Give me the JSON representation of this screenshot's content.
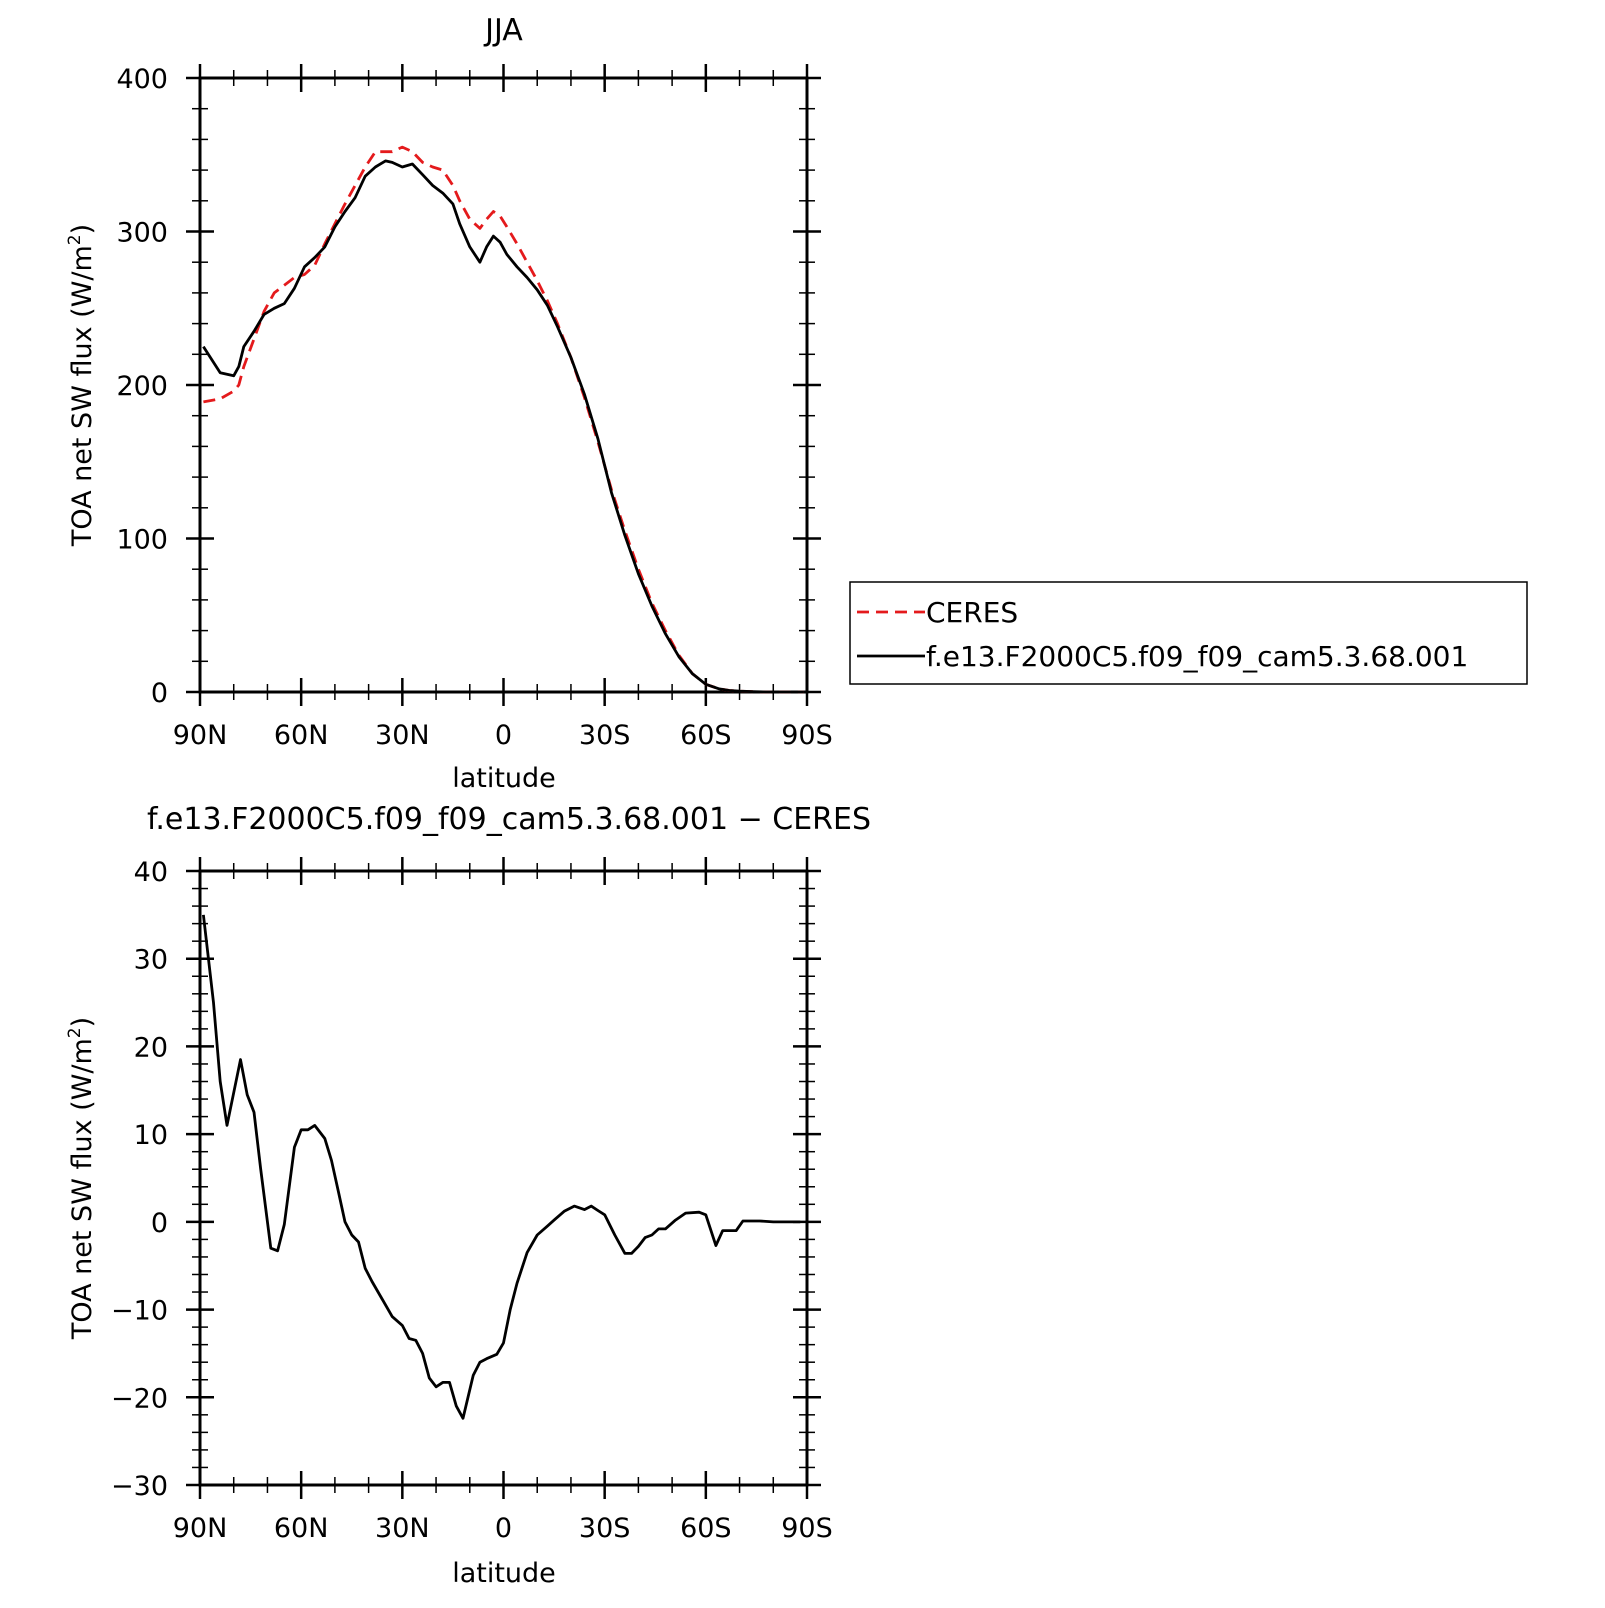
{
  "colors": {
    "ceres": "#e41a1c",
    "model": "#000000",
    "axis": "#000000"
  },
  "chart_data": [
    {
      "type": "line",
      "title": "JJA",
      "xlabel": "latitude",
      "ylabel": "TOA net SW flux (W/m",
      "ylabel_sup": "2",
      "ylabel_end": ")",
      "xlim": [
        90,
        -90
      ],
      "ylim": [
        0,
        400
      ],
      "xticks": [
        90,
        60,
        30,
        0,
        -30,
        -60,
        -90
      ],
      "xtick_labels": [
        "90N",
        "60N",
        "30N",
        "0",
        "30S",
        "60S",
        "90S"
      ],
      "yticks": [
        0,
        100,
        200,
        300,
        400
      ],
      "ytick_labels": [
        "0",
        "100",
        "200",
        "300",
        "400"
      ],
      "grid": false,
      "legend_position": "right, outside plot",
      "series": [
        {
          "name": "CERES",
          "style": "dashed",
          "x": [
            89,
            84,
            80,
            78.5,
            77,
            74,
            71,
            68,
            65,
            62,
            59,
            56,
            53,
            50,
            47,
            44,
            41,
            38,
            35,
            33,
            30,
            27,
            24,
            21,
            18,
            15,
            13,
            10,
            7,
            5,
            3,
            1,
            -1,
            -4,
            -7,
            -10,
            -13,
            -16,
            -20,
            -24,
            -28,
            -32,
            -36,
            -40,
            -44,
            -48,
            -52,
            -56,
            -60,
            -64,
            -67,
            -70,
            -74,
            -78,
            -82,
            -86,
            -89
          ],
          "y": [
            189,
            191,
            196,
            200,
            212,
            230,
            248,
            260,
            265,
            270,
            272,
            278,
            292,
            305,
            318,
            330,
            342,
            352,
            352,
            352,
            355,
            352,
            345,
            342,
            340,
            330,
            320,
            308,
            302,
            308,
            313,
            310,
            303,
            292,
            280,
            268,
            255,
            240,
            218,
            192,
            163,
            132,
            105,
            80,
            58,
            40,
            24,
            12,
            5,
            2,
            1,
            0.5,
            0.2,
            0,
            0,
            0,
            0
          ]
        },
        {
          "name": "f.e13.F2000C5.f09_f09_cam5.3.68.001",
          "style": "solid",
          "x": [
            89,
            84,
            80,
            78.5,
            77,
            74,
            71,
            68,
            65,
            62,
            59,
            56,
            53,
            50,
            47,
            44,
            41,
            38,
            35,
            33,
            30,
            27,
            24,
            21,
            18,
            15,
            13,
            10,
            7,
            5,
            3,
            1,
            -1,
            -4,
            -7,
            -10,
            -13,
            -16,
            -20,
            -24,
            -28,
            -32,
            -36,
            -40,
            -44,
            -48,
            -52,
            -56,
            -60,
            -64,
            -67,
            -70,
            -74,
            -78,
            -82,
            -86,
            -89
          ],
          "y": [
            225,
            208,
            206,
            212,
            225,
            235,
            246,
            250,
            253,
            263,
            277,
            283,
            290,
            303,
            313,
            322,
            336,
            342,
            346,
            345,
            342,
            344,
            337,
            330,
            325,
            318,
            305,
            290,
            280,
            290,
            297,
            293,
            285,
            277,
            270,
            262,
            252,
            238,
            218,
            194,
            165,
            130,
            102,
            77,
            56,
            38,
            23,
            12,
            5,
            2,
            1,
            0.5,
            0.2,
            0,
            0,
            0,
            0
          ]
        }
      ]
    },
    {
      "type": "line",
      "title": "f.e13.F2000C5.f09_f09_cam5.3.68.001 − CERES",
      "xlabel": "latitude",
      "ylabel": "TOA net SW flux (W/m",
      "ylabel_sup": "2",
      "ylabel_end": ")",
      "xlim": [
        90,
        -90
      ],
      "ylim": [
        -30,
        40
      ],
      "xticks": [
        90,
        60,
        30,
        0,
        -30,
        -60,
        -90
      ],
      "xtick_labels": [
        "90N",
        "60N",
        "30N",
        "0",
        "30S",
        "60S",
        "90S"
      ],
      "yticks": [
        -30,
        -20,
        -10,
        0,
        10,
        20,
        30,
        40
      ],
      "ytick_labels": [
        "−30",
        "−20",
        "−10",
        "0",
        "10",
        "20",
        "30",
        "40"
      ],
      "grid": false,
      "series": [
        {
          "name": "",
          "style": "solid",
          "x": [
            89,
            86,
            84,
            82,
            78,
            76,
            74,
            72,
            69,
            67,
            65,
            62,
            60,
            58,
            56,
            53,
            51,
            49,
            47,
            45,
            43,
            41,
            39,
            36,
            33,
            30,
            28,
            26,
            24,
            22,
            20,
            18,
            16,
            14,
            12,
            9,
            7,
            5,
            2,
            0,
            -2,
            -4,
            -7,
            -10,
            -13,
            -15,
            -18,
            -21,
            -24,
            -26,
            -28,
            -30,
            -33,
            -36,
            -38,
            -40,
            -42,
            -44,
            -46,
            -48,
            -51,
            -54,
            -58,
            -60,
            -63,
            -65,
            -67,
            -69,
            -71,
            -73,
            -76,
            -80,
            -84,
            -88
          ],
          "y": [
            35,
            25,
            16,
            11,
            18.5,
            14.5,
            12.5,
            6,
            -3,
            -3.3,
            -0.3,
            8.5,
            10.5,
            10.5,
            11,
            9.5,
            7,
            3.5,
            0,
            -1.5,
            -2.3,
            -5.3,
            -6.8,
            -8.8,
            -10.8,
            -11.8,
            -13.3,
            -13.5,
            -15,
            -17.8,
            -18.8,
            -18.3,
            -18.3,
            -21,
            -22.4,
            -17.5,
            -16,
            -15.6,
            -15.1,
            -13.8,
            -10,
            -7,
            -3.5,
            -1.5,
            -0.5,
            0.2,
            1.2,
            1.8,
            1.4,
            1.8,
            1.3,
            0.8,
            -1.5,
            -3.6,
            -3.6,
            -2.8,
            -1.8,
            -1.5,
            -0.8,
            -0.8,
            0.2,
            1,
            1.1,
            0.8,
            -2.7,
            -1,
            -1,
            -1,
            0.1,
            0.1,
            0.1,
            0,
            0,
            0
          ]
        }
      ]
    }
  ]
}
